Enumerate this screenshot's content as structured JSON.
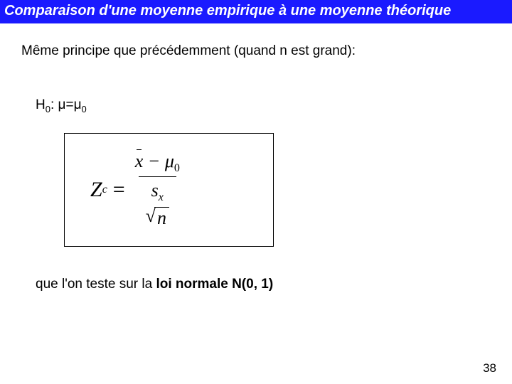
{
  "title": "Comparaison d'une moyenne empirique à une moyenne théorique",
  "intro": "Même principe que précédemment (quand n est grand):",
  "hypothesis": {
    "label": "H",
    "sub": "0",
    "colon": ": ",
    "mu": "μ",
    "eq": "=",
    "mu2": "μ",
    "sub2": "0"
  },
  "formula": {
    "Z": "Z",
    "Zsub": "c",
    "equals": "=",
    "xbar": "x",
    "minus": " − ",
    "mu": "μ",
    "mu_sub": "0",
    "s": "s",
    "s_sub": "x",
    "n": "n"
  },
  "conclusion_prefix": "que l'on teste sur la ",
  "conclusion_bold": "loi normale N(0, 1)",
  "page_number": "38",
  "colors": {
    "title_bg": "#1a1aff",
    "title_fg": "#ffffff",
    "body_bg": "#ffffff",
    "text": "#000000"
  }
}
